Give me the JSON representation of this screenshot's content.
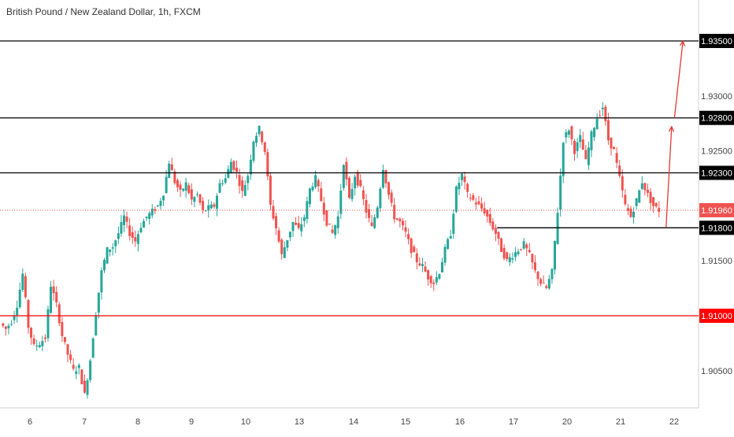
{
  "header": {
    "title": "British Pound / New Zealand Dollar, 1h, FXCM"
  },
  "colors": {
    "up": "#26a69a",
    "down": "#ef5350",
    "support_resistance": "#000000",
    "key_level": "#ff0000",
    "current_price": "#ef5350",
    "arrow": "#e53935",
    "axis_text": "#444444"
  },
  "chart_data": {
    "type": "candlestick",
    "title": "British Pound / New Zealand Dollar, 1h, FXCM",
    "ylim": [
      1.901,
      1.9375
    ],
    "grid": false,
    "x_ticks": [
      "6",
      "7",
      "8",
      "9",
      "10",
      "13",
      "14",
      "15",
      "16",
      "17",
      "20",
      "21",
      "22"
    ],
    "y_ticks": [
      "1.93000",
      "1.92500",
      "1.91500",
      "1.90500"
    ],
    "price_path": [
      [
        0,
        1.9093
      ],
      [
        1,
        1.9088
      ],
      [
        2,
        1.9095
      ],
      [
        3,
        1.911
      ],
      [
        4,
        1.9138
      ],
      [
        5,
        1.909
      ],
      [
        6,
        1.9072
      ],
      [
        7,
        1.9075
      ],
      [
        8,
        1.908
      ],
      [
        9,
        1.9128
      ],
      [
        10,
        1.911
      ],
      [
        11,
        1.9082
      ],
      [
        12,
        1.9065
      ],
      [
        13,
        1.905
      ],
      [
        14,
        1.9053
      ],
      [
        15,
        1.9028
      ],
      [
        16,
        1.906
      ],
      [
        17,
        1.9103
      ],
      [
        18,
        1.914
      ],
      [
        19,
        1.916
      ],
      [
        20,
        1.9163
      ],
      [
        21,
        1.9175
      ],
      [
        22,
        1.919
      ],
      [
        23,
        1.9175
      ],
      [
        24,
        1.9168
      ],
      [
        25,
        1.9182
      ],
      [
        26,
        1.919
      ],
      [
        27,
        1.9195
      ],
      [
        28,
        1.92
      ],
      [
        29,
        1.9212
      ],
      [
        30,
        1.924
      ],
      [
        31,
        1.9222
      ],
      [
        32,
        1.9212
      ],
      [
        33,
        1.922
      ],
      [
        34,
        1.9205
      ],
      [
        35,
        1.921
      ],
      [
        36,
        1.9195
      ],
      [
        37,
        1.9198
      ],
      [
        38,
        1.92
      ],
      [
        39,
        1.922
      ],
      [
        40,
        1.9225
      ],
      [
        41,
        1.924
      ],
      [
        42,
        1.923
      ],
      [
        43,
        1.9212
      ],
      [
        44,
        1.9228
      ],
      [
        45,
        1.926
      ],
      [
        46,
        1.927
      ],
      [
        47,
        1.925
      ],
      [
        48,
        1.92
      ],
      [
        49,
        1.918
      ],
      [
        50,
        1.9155
      ],
      [
        51,
        1.917
      ],
      [
        52,
        1.9185
      ],
      [
        53,
        1.9178
      ],
      [
        54,
        1.919
      ],
      [
        55,
        1.9215
      ],
      [
        56,
        1.9225
      ],
      [
        57,
        1.9205
      ],
      [
        58,
        1.9185
      ],
      [
        59,
        1.9175
      ],
      [
        60,
        1.919
      ],
      [
        61,
        1.924
      ],
      [
        62,
        1.9205
      ],
      [
        63,
        1.9228
      ],
      [
        64,
        1.9215
      ],
      [
        65,
        1.9195
      ],
      [
        66,
        1.918
      ],
      [
        67,
        1.92
      ],
      [
        68,
        1.9235
      ],
      [
        69,
        1.921
      ],
      [
        70,
        1.919
      ],
      [
        71,
        1.9185
      ],
      [
        72,
        1.9175
      ],
      [
        73,
        1.916
      ],
      [
        74,
        1.915
      ],
      [
        75,
        1.9145
      ],
      [
        76,
        1.9135
      ],
      [
        77,
        1.913
      ],
      [
        78,
        1.914
      ],
      [
        79,
        1.916
      ],
      [
        80,
        1.9175
      ],
      [
        81,
        1.9215
      ],
      [
        82,
        1.9228
      ],
      [
        83,
        1.921
      ],
      [
        84,
        1.9205
      ],
      [
        85,
        1.92
      ],
      [
        86,
        1.9195
      ],
      [
        87,
        1.9185
      ],
      [
        88,
        1.9175
      ],
      [
        89,
        1.916
      ],
      [
        90,
        1.915
      ],
      [
        91,
        1.9155
      ],
      [
        92,
        1.916
      ],
      [
        93,
        1.9165
      ],
      [
        94,
        1.9155
      ],
      [
        95,
        1.914
      ],
      [
        96,
        1.913
      ],
      [
        97,
        1.9125
      ],
      [
        98,
        1.914
      ],
      [
        99,
        1.9195
      ],
      [
        100,
        1.926
      ],
      [
        101,
        1.927
      ],
      [
        102,
        1.925
      ],
      [
        103,
        1.9262
      ],
      [
        104,
        1.924
      ],
      [
        105,
        1.9265
      ],
      [
        106,
        1.928
      ],
      [
        107,
        1.929
      ],
      [
        108,
        1.926
      ],
      [
        109,
        1.925
      ],
      [
        110,
        1.9225
      ],
      [
        111,
        1.92
      ],
      [
        112,
        1.919
      ],
      [
        113,
        1.9205
      ],
      [
        114,
        1.9222
      ],
      [
        115,
        1.921
      ],
      [
        116,
        1.92
      ],
      [
        117,
        1.9196
      ]
    ],
    "levels": [
      {
        "value": 1.935,
        "label": "1.93500",
        "kind": "resistance"
      },
      {
        "value": 1.928,
        "label": "1.92800",
        "kind": "resistance"
      },
      {
        "value": 1.923,
        "label": "1.92300",
        "kind": "resistance"
      },
      {
        "value": 1.918,
        "label": "1.91800",
        "kind": "support"
      },
      {
        "value": 1.91,
        "label": "1.91000",
        "kind": "key"
      }
    ],
    "current_price": {
      "value": 1.9196,
      "label": "1.91960"
    },
    "projection_arrows": [
      {
        "from": [
          118,
          1.918
        ],
        "to": [
          119,
          1.9272
        ]
      },
      {
        "from": [
          119.5,
          1.928
        ],
        "to": [
          121,
          1.935
        ]
      }
    ]
  }
}
